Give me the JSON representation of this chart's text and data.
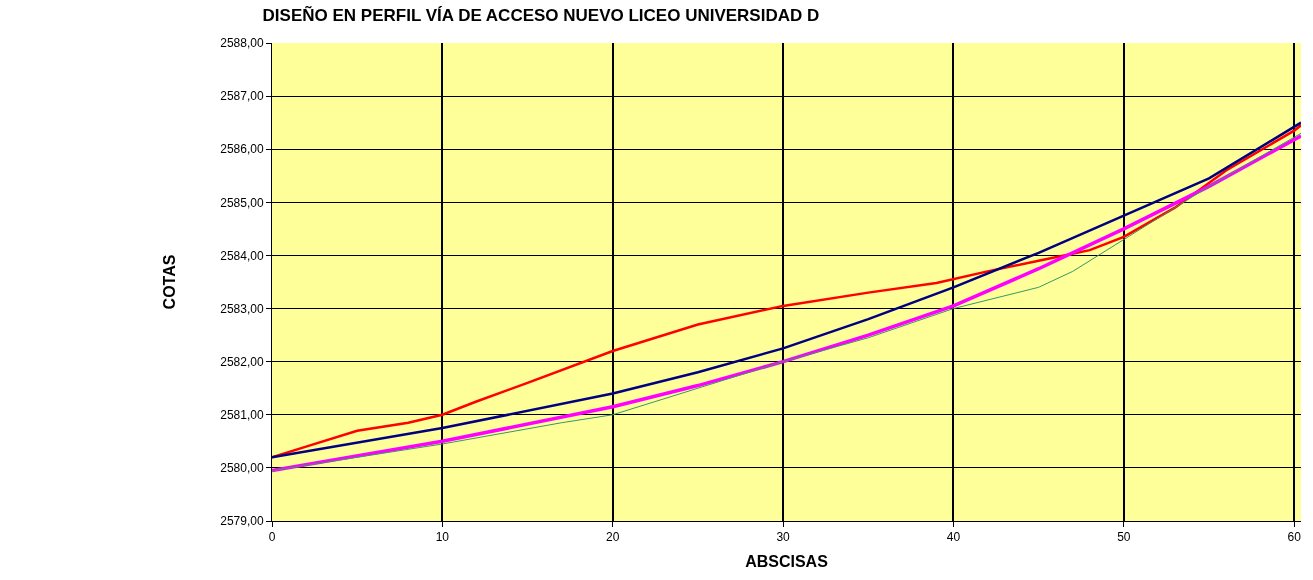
{
  "chart_data": {
    "type": "line",
    "title": "DISEÑO EN PERFIL VÍA DE ACCESO NUEVO LICEO UNIVERSIDAD D",
    "xlabel": "ABSCISAS",
    "ylabel": "COTAS",
    "series": [
      {
        "color": "#ff0000",
        "x": [
          0,
          2,
          5,
          8,
          10,
          12,
          15,
          20,
          25,
          30,
          35,
          39,
          42,
          45,
          48,
          50,
          53,
          56,
          60,
          60.4
        ],
        "values": [
          2580.2,
          2580.4,
          2580.7,
          2580.85,
          2581.0,
          2581.25,
          2581.6,
          2582.2,
          2582.7,
          2583.05,
          2583.3,
          2583.48,
          2583.7,
          2583.9,
          2584.1,
          2584.35,
          2584.9,
          2585.6,
          2586.35,
          2586.45
        ]
      },
      {
        "color": "#339966",
        "x": [
          0,
          10,
          17,
          20,
          25,
          30,
          35,
          40,
          45,
          47,
          50,
          55,
          60.4
        ],
        "values": [
          2579.95,
          2580.45,
          2580.85,
          2581.0,
          2581.5,
          2582.0,
          2582.45,
          2583.0,
          2583.4,
          2583.7,
          2584.3,
          2585.3,
          2586.3
        ]
      },
      {
        "color": "#000080",
        "x": [
          0,
          10,
          20,
          25,
          30,
          35,
          40,
          45,
          50,
          55,
          60.4
        ],
        "values": [
          2580.2,
          2580.75,
          2581.4,
          2581.8,
          2582.25,
          2582.8,
          2583.4,
          2584.05,
          2584.75,
          2585.45,
          2586.5
        ]
      },
      {
        "color": "#ff00ff",
        "x": [
          0,
          10,
          20,
          25,
          30,
          35,
          40,
          45,
          50,
          55,
          60.4
        ],
        "values": [
          2579.95,
          2580.5,
          2581.15,
          2581.55,
          2582.0,
          2582.5,
          2583.05,
          2583.75,
          2584.5,
          2585.3,
          2586.25
        ]
      }
    ],
    "xlim": [
      0,
      60.4
    ],
    "xticks": [
      0,
      10,
      20,
      30,
      40,
      50,
      60
    ],
    "ylim": [
      2579,
      2588
    ],
    "yticks": [
      {
        "value": 2579,
        "label": "2579,00"
      },
      {
        "value": 2580,
        "label": "2580,00"
      },
      {
        "value": 2581,
        "label": "2581,00"
      },
      {
        "value": 2582,
        "label": "2582,00"
      },
      {
        "value": 2583,
        "label": "2583,00"
      },
      {
        "value": 2584,
        "label": "2584,00"
      },
      {
        "value": 2585,
        "label": "2585,00"
      },
      {
        "value": 2586,
        "label": "2586,00"
      },
      {
        "value": 2587,
        "label": "2587,00"
      },
      {
        "value": 2588,
        "label": "2588,00"
      }
    ],
    "grid": true
  }
}
